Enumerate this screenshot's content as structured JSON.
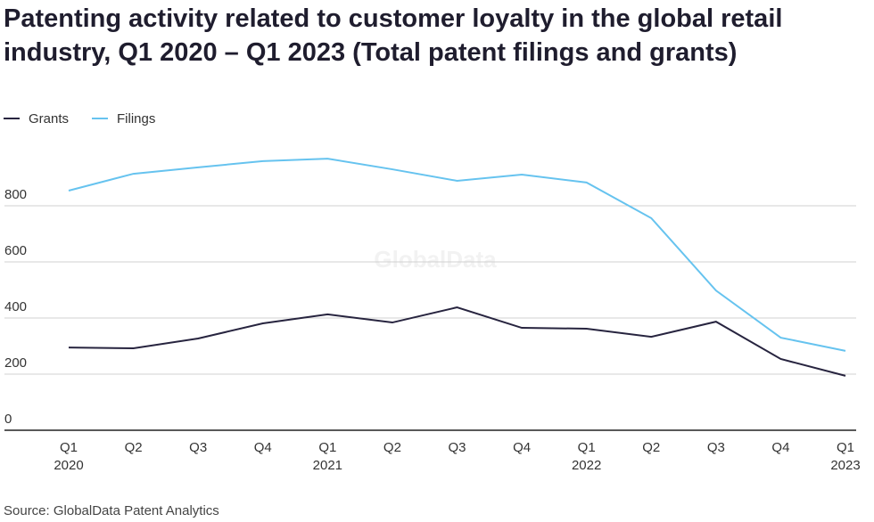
{
  "chart_data": {
    "type": "line",
    "title": "Patenting activity related to customer loyalty in the global retail industry, Q1 2020 – Q1 2023 (Total patent filings and grants)",
    "categories": [
      "Q1",
      "Q2",
      "Q3",
      "Q4",
      "Q1",
      "Q2",
      "Q3",
      "Q4",
      "Q1",
      "Q2",
      "Q3",
      "Q4",
      "Q1"
    ],
    "category_years": [
      "2020",
      null,
      null,
      null,
      "2021",
      null,
      null,
      null,
      "2022",
      null,
      null,
      null,
      "2023"
    ],
    "series": [
      {
        "name": "Grants",
        "color": "#27243f",
        "values": [
          295,
          292,
          327,
          381,
          413,
          384,
          438,
          365,
          362,
          333,
          387,
          254,
          194
        ]
      },
      {
        "name": "Filings",
        "color": "#66c3ef",
        "values": [
          854,
          914,
          937,
          959,
          968,
          930,
          889,
          911,
          883,
          756,
          498,
          330,
          283
        ]
      }
    ],
    "ylim": [
      0,
      1000
    ],
    "yticks": [
      0,
      200,
      400,
      600,
      800
    ],
    "grid": true,
    "legend": "top-left",
    "watermark": "GlobalData",
    "source": "Source: GlobalData Patent Analytics"
  }
}
